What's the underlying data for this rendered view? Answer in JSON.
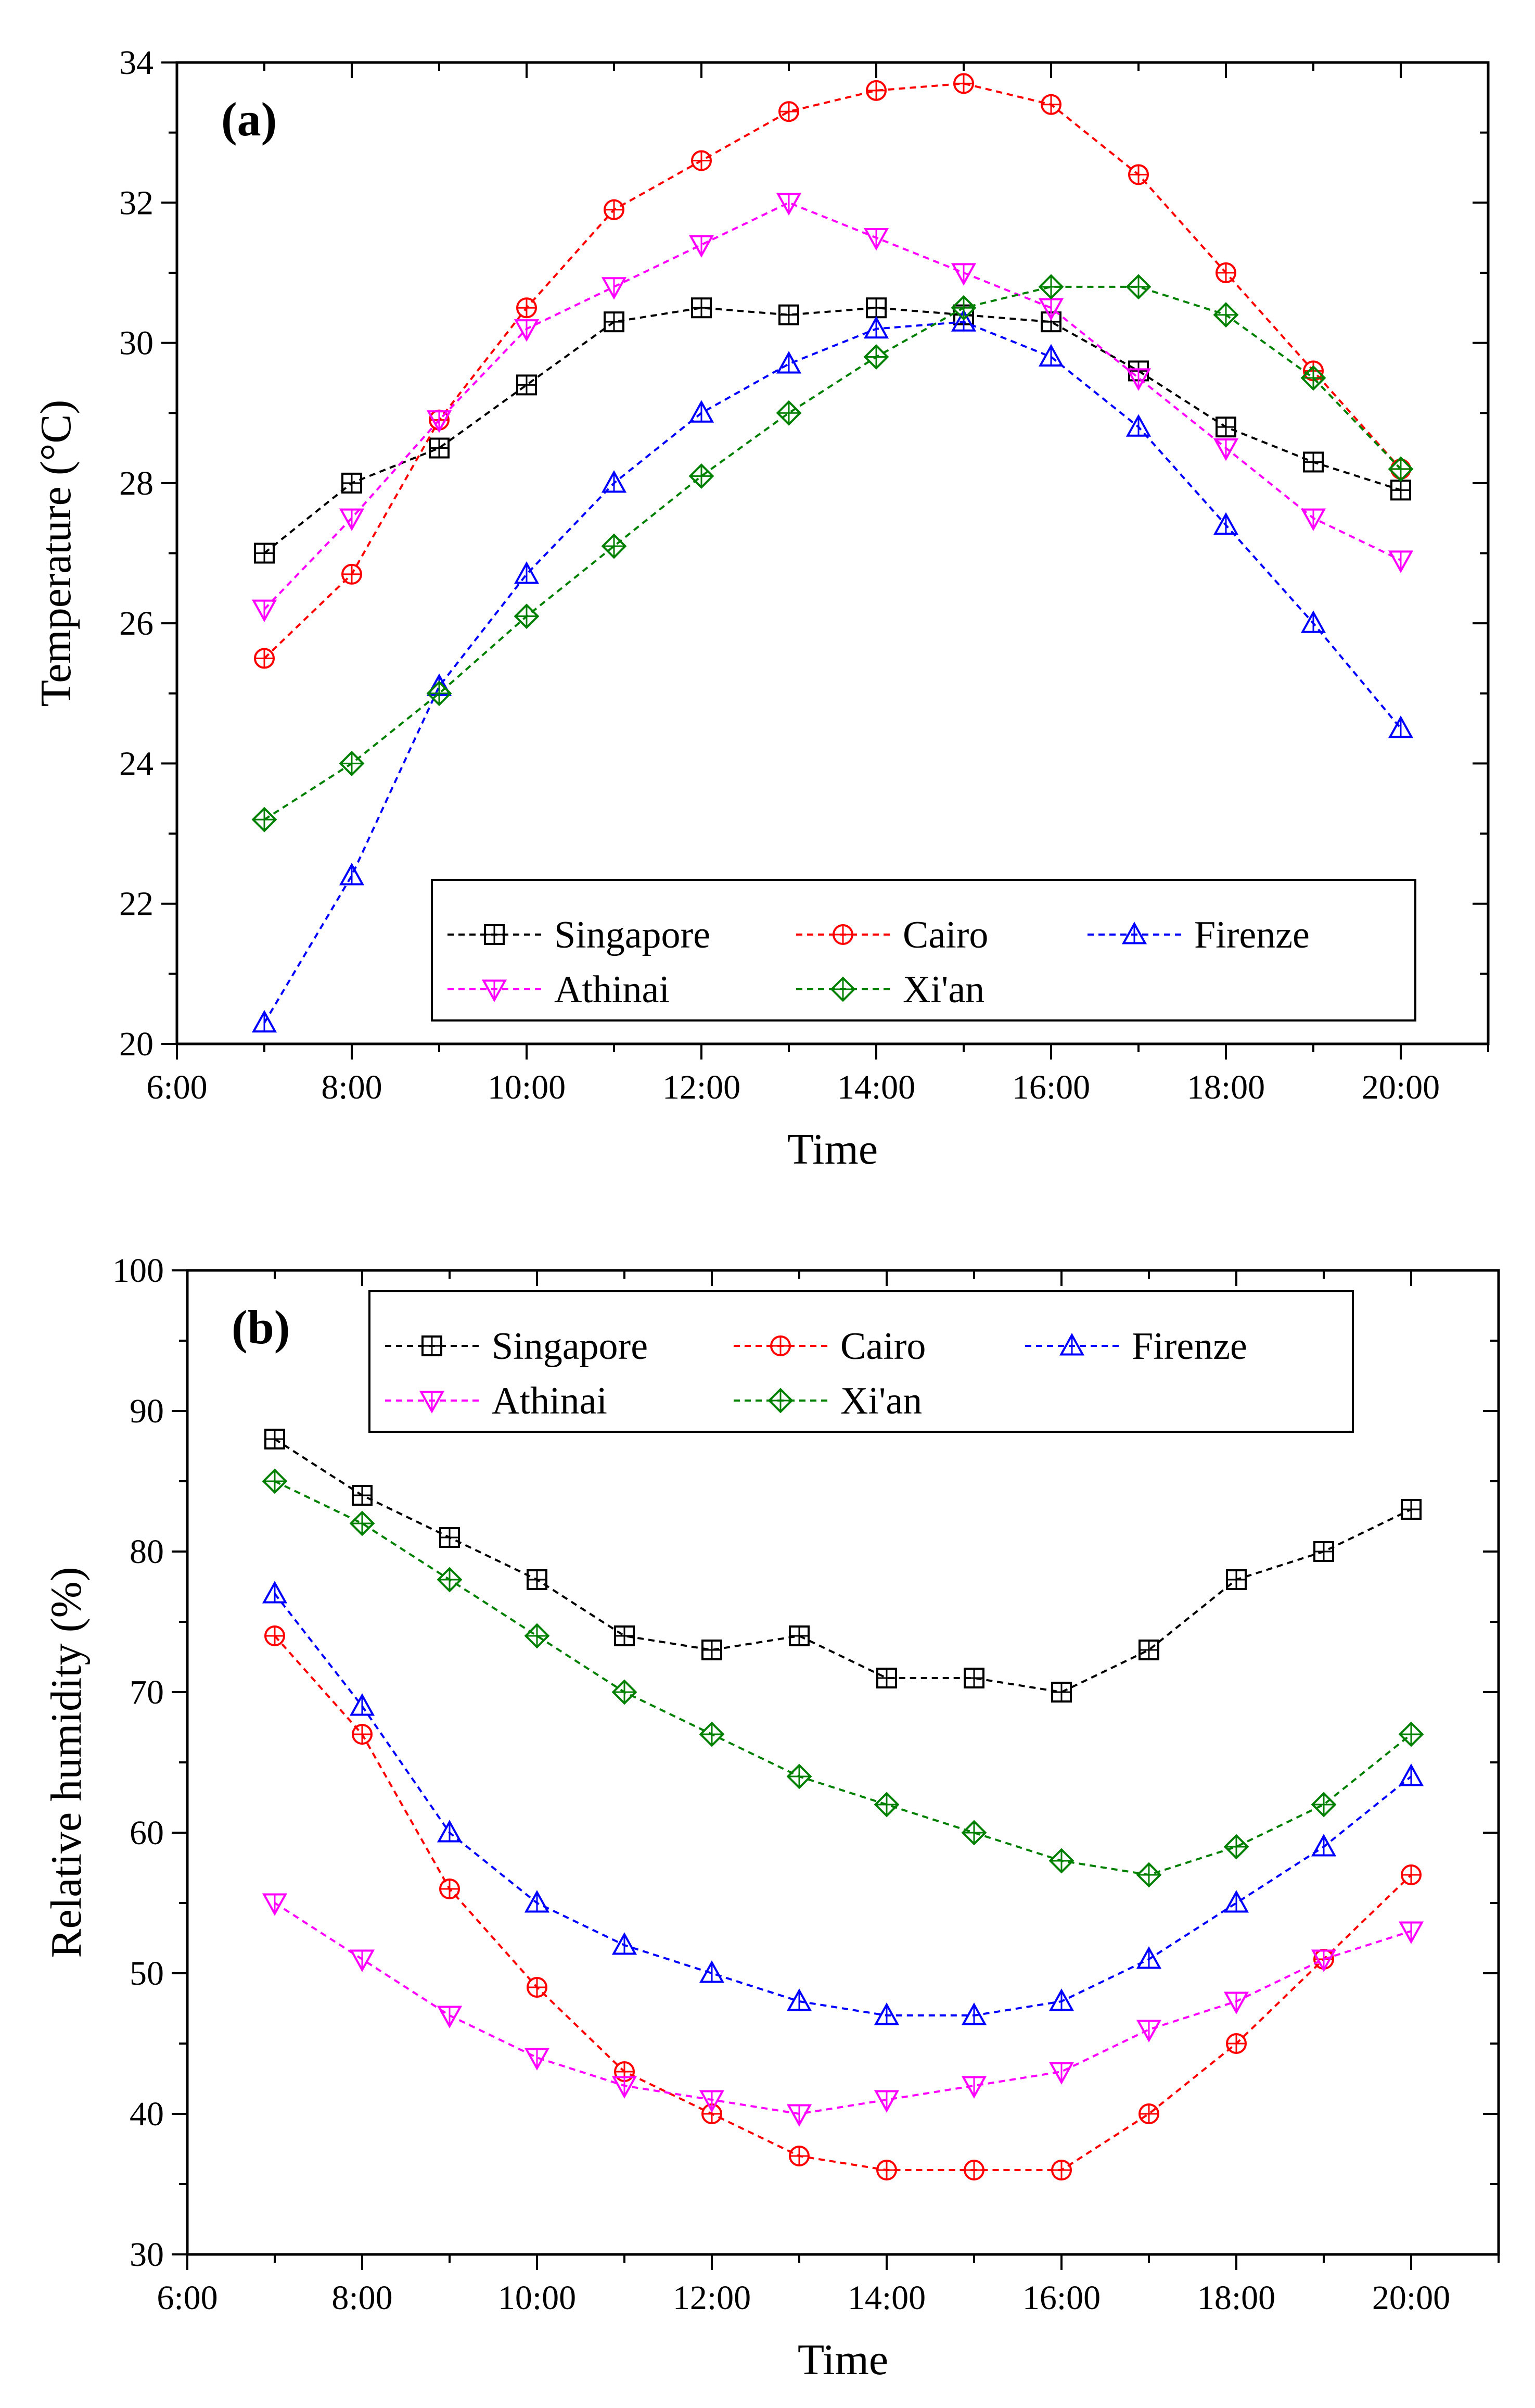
{
  "series_styles": {
    "Singapore": {
      "color": "#000000",
      "marker": "square"
    },
    "Cairo": {
      "color": "#ff0000",
      "marker": "circle"
    },
    "Firenze": {
      "color": "#0000ff",
      "marker": "triangle-up"
    },
    "Athinai": {
      "color": "#ff00ff",
      "marker": "triangle-down"
    },
    "Xi'an": {
      "color": "#008000",
      "marker": "diamond"
    }
  },
  "chart_data": [
    {
      "type": "line",
      "panel_label": "(a)",
      "title": "",
      "xlabel": "Time",
      "ylabel": "Temperature (°C)",
      "xlim": [
        6,
        21
      ],
      "ylim": [
        20,
        34
      ],
      "xticks": [
        6,
        8,
        10,
        12,
        14,
        16,
        18,
        20
      ],
      "xtick_labels": [
        "6:00",
        "8:00",
        "10:00",
        "12:00",
        "14:00",
        "16:00",
        "18:00",
        "20:00"
      ],
      "yticks": [
        20,
        22,
        24,
        26,
        28,
        30,
        32,
        34
      ],
      "ytick_labels": [
        "20",
        "22",
        "24",
        "26",
        "28",
        "30",
        "32",
        "34"
      ],
      "legend_position": "bottom-right",
      "x": [
        7,
        8,
        9,
        10,
        11,
        12,
        13,
        14,
        15,
        16,
        17,
        18,
        19,
        20
      ],
      "series": [
        {
          "name": "Singapore",
          "values": [
            27.0,
            28.0,
            28.5,
            29.4,
            30.3,
            30.5,
            30.4,
            30.5,
            30.4,
            30.3,
            29.6,
            28.8,
            28.3,
            27.9
          ]
        },
        {
          "name": "Cairo",
          "values": [
            25.5,
            26.7,
            28.9,
            30.5,
            31.9,
            32.6,
            33.3,
            33.6,
            33.7,
            33.4,
            32.4,
            31.0,
            29.6,
            28.2
          ]
        },
        {
          "name": "Firenze",
          "values": [
            20.3,
            22.4,
            25.1,
            26.7,
            28.0,
            29.0,
            29.7,
            30.2,
            30.3,
            29.8,
            28.8,
            27.4,
            26.0,
            24.5
          ]
        },
        {
          "name": "Athinai",
          "values": [
            26.2,
            27.5,
            28.9,
            30.2,
            30.8,
            31.4,
            32.0,
            31.5,
            31.0,
            30.5,
            29.5,
            28.5,
            27.5,
            26.9
          ]
        },
        {
          "name": "Xi'an",
          "values": [
            23.2,
            24.0,
            25.0,
            26.1,
            27.1,
            28.1,
            29.0,
            29.8,
            30.5,
            30.8,
            30.8,
            30.4,
            29.5,
            28.2
          ]
        }
      ]
    },
    {
      "type": "line",
      "panel_label": "(b)",
      "title": "",
      "xlabel": "Time",
      "ylabel": "Relative humidity (%)",
      "xlim": [
        6,
        21
      ],
      "ylim": [
        30,
        100
      ],
      "xticks": [
        6,
        8,
        10,
        12,
        14,
        16,
        18,
        20
      ],
      "xtick_labels": [
        "6:00",
        "8:00",
        "10:00",
        "12:00",
        "14:00",
        "16:00",
        "18:00",
        "20:00"
      ],
      "yticks": [
        30,
        40,
        50,
        60,
        70,
        80,
        90,
        100
      ],
      "ytick_labels": [
        "30",
        "40",
        "50",
        "60",
        "70",
        "80",
        "90",
        "100"
      ],
      "legend_position": "top",
      "x": [
        7,
        8,
        9,
        10,
        11,
        12,
        13,
        14,
        15,
        16,
        17,
        18,
        19,
        20
      ],
      "series": [
        {
          "name": "Singapore",
          "values": [
            88,
            84,
            81,
            78,
            74,
            73,
            74,
            71,
            71,
            70,
            73,
            78,
            80,
            83
          ]
        },
        {
          "name": "Cairo",
          "values": [
            74,
            67,
            56,
            49,
            43,
            40,
            37,
            36,
            36,
            36,
            40,
            45,
            51,
            57
          ]
        },
        {
          "name": "Firenze",
          "values": [
            77,
            69,
            60,
            55,
            52,
            50,
            48,
            47,
            47,
            48,
            51,
            55,
            59,
            64
          ]
        },
        {
          "name": "Athinai",
          "values": [
            55,
            51,
            47,
            44,
            42,
            41,
            40,
            41,
            42,
            43,
            46,
            48,
            51,
            53
          ]
        },
        {
          "name": "Xi'an",
          "values": [
            85,
            82,
            78,
            74,
            70,
            67,
            64,
            62,
            60,
            58,
            57,
            59,
            62,
            67
          ]
        }
      ]
    }
  ]
}
